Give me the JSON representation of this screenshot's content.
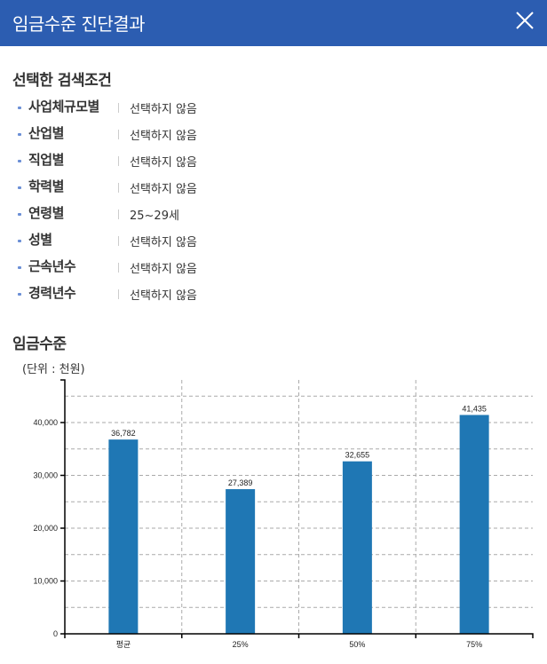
{
  "header": {
    "title": "임금수준 진단결과",
    "close_icon": "close-icon"
  },
  "conditions": {
    "title": "선택한 검색조건",
    "items": [
      {
        "label": "사업체규모별",
        "value": "선택하지 않음"
      },
      {
        "label": "산업별",
        "value": "선택하지 않음"
      },
      {
        "label": "직업별",
        "value": "선택하지 않음"
      },
      {
        "label": "학력별",
        "value": "선택하지 않음"
      },
      {
        "label": "연령별",
        "value": "25~29세"
      },
      {
        "label": "성별",
        "value": "선택하지 않음"
      },
      {
        "label": "근속년수",
        "value": "선택하지 않음"
      },
      {
        "label": "경력년수",
        "value": "선택하지 않음"
      }
    ]
  },
  "wage": {
    "title": "임금수준",
    "unit": "(단위 : 천원)"
  },
  "colors": {
    "header": "#2c5db1",
    "bar": "#1f77b4",
    "bullet": "#6b8fd6"
  },
  "chart_data": {
    "type": "bar",
    "title": "임금수준",
    "ylabel": "(단위 : 천원)",
    "xlabel": "",
    "categories": [
      "평균",
      "25%",
      "50%",
      "75%"
    ],
    "values": [
      36782,
      27389,
      32655,
      41435
    ],
    "value_labels": [
      "36,782",
      "27,389",
      "32,655",
      "41,435"
    ],
    "yticks": [
      0,
      10000,
      20000,
      30000,
      40000
    ],
    "ytick_labels": [
      "0",
      "10,000",
      "20,000",
      "30,000",
      "40,000"
    ],
    "ylim": [
      0,
      48000
    ],
    "grid": true,
    "legend": "none"
  }
}
